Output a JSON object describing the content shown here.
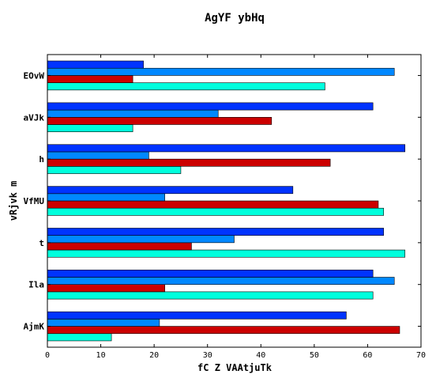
{
  "chart_data": {
    "type": "bar",
    "orientation": "horizontal",
    "title": "AgYF ybHq",
    "xlabel": "fC Z VAAtjuTk",
    "ylabel": "vRjvk m",
    "xlim": [
      0,
      70
    ],
    "xticks": [
      "0",
      "10",
      "20",
      "30",
      "40",
      "50",
      "60",
      "70"
    ],
    "categories": [
      "AjmK",
      "Ila",
      "t",
      "VfMU",
      "h",
      "aVJk",
      "EOvW"
    ],
    "series": [
      {
        "color": "#00ffdd",
        "values": [
          12,
          61,
          67,
          63,
          25,
          16,
          52
        ]
      },
      {
        "color": "#cc0000",
        "values": [
          66,
          22,
          27,
          62,
          53,
          42,
          16
        ]
      },
      {
        "color": "#0088ff",
        "values": [
          21,
          65,
          35,
          22,
          19,
          32,
          65
        ]
      },
      {
        "color": "#0033ff",
        "values": [
          56,
          61,
          63,
          46,
          67,
          61,
          18
        ]
      }
    ],
    "grid": false,
    "legend": false
  }
}
